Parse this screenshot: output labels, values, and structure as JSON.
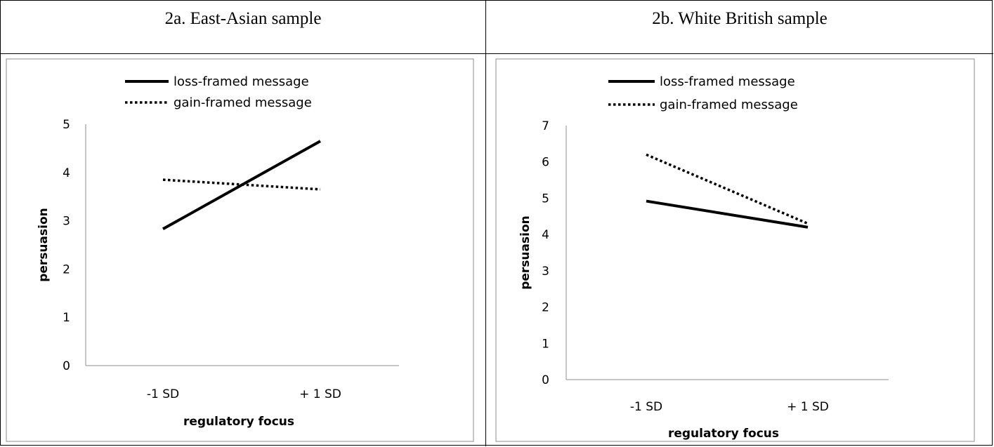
{
  "panels": [
    {
      "title": "2a. East-Asian sample"
    },
    {
      "title": "2b. White British sample"
    }
  ],
  "chart_data": [
    {
      "type": "line",
      "title": "2a. East-Asian sample",
      "xlabel": "regulatory focus",
      "ylabel": "persuasion",
      "categories": [
        "-1 SD",
        "+ 1 SD"
      ],
      "ylim": [
        0,
        5
      ],
      "yticks": [
        "0",
        "1",
        "2",
        "3",
        "4",
        "5"
      ],
      "grid": false,
      "legend": "top",
      "series": [
        {
          "name": "loss-framed message",
          "style": "solid",
          "values": [
            2.83,
            4.65
          ]
        },
        {
          "name": "gain-framed message",
          "style": "dotted",
          "values": [
            3.85,
            3.65
          ]
        }
      ]
    },
    {
      "type": "line",
      "title": "2b. White British sample",
      "xlabel": "regulatory focus",
      "ylabel": "persuasion",
      "categories": [
        "-1 SD",
        "+ 1 SD"
      ],
      "ylim": [
        0,
        7
      ],
      "yticks": [
        "0",
        "1",
        "2",
        "3",
        "4",
        "5",
        "6",
        "7"
      ],
      "grid": false,
      "legend": "top",
      "series": [
        {
          "name": "loss-framed message",
          "style": "solid",
          "values": [
            4.92,
            4.2
          ]
        },
        {
          "name": "gain-framed message",
          "style": "dotted",
          "values": [
            6.2,
            4.3
          ]
        }
      ]
    }
  ]
}
